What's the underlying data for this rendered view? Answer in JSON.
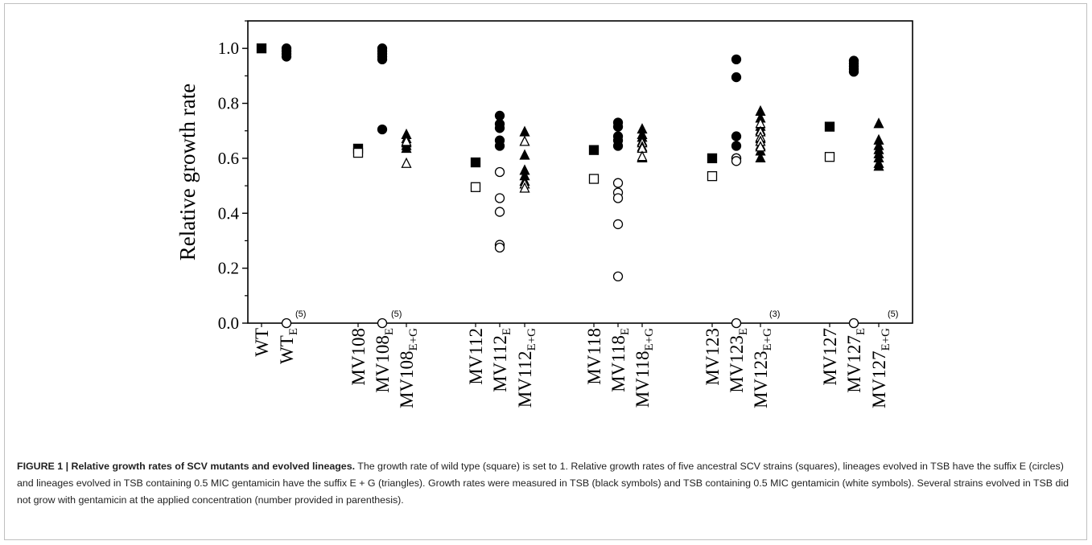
{
  "figure": {
    "caption_title": "FIGURE 1 | Relative growth rates of SCV mutants and evolved lineages.",
    "caption_text": "The growth rate of wild type (square) is set to 1. Relative growth rates of five ancestral SCV strains (squares), lineages evolved in TSB have the suffix E (circles) and lineages evolved in TSB containing 0.5 MIC gentamicin have the suffix E + G (triangles). Growth rates were measured in TSB (black symbols) and TSB containing 0.5 MIC gentamicin (white symbols). Several strains evolved in TSB did not grow with gentamicin at the applied concentration (number provided in parenthesis)."
  },
  "chart_data": {
    "type": "scatter",
    "ylabel": "Relative growth rate",
    "ylim": [
      0.0,
      1.1
    ],
    "yticks": [
      "0.0",
      "0.2",
      "0.4",
      "0.6",
      "0.8",
      "1.0"
    ],
    "categories": [
      {
        "base": "WT",
        "sub": ""
      },
      {
        "base": "WT",
        "sub": "E"
      },
      {
        "base": "MV108",
        "sub": ""
      },
      {
        "base": "MV108",
        "sub": "E"
      },
      {
        "base": "MV108",
        "sub": "E+G"
      },
      {
        "base": "MV112",
        "sub": ""
      },
      {
        "base": "MV112",
        "sub": "E"
      },
      {
        "base": "MV112",
        "sub": "E+G"
      },
      {
        "base": "MV118",
        "sub": ""
      },
      {
        "base": "MV118",
        "sub": "E"
      },
      {
        "base": "MV118",
        "sub": "E+G"
      },
      {
        "base": "MV123",
        "sub": ""
      },
      {
        "base": "MV123",
        "sub": "E"
      },
      {
        "base": "MV123",
        "sub": "E+G"
      },
      {
        "base": "MV127",
        "sub": ""
      },
      {
        "base": "MV127",
        "sub": "E"
      },
      {
        "base": "MV127",
        "sub": "E+G"
      }
    ],
    "points": [
      {
        "cat": 0,
        "shape": "square",
        "fill": "filled",
        "ys": [
          1.0
        ]
      },
      {
        "cat": 1,
        "shape": "circle",
        "fill": "filled",
        "ys": [
          1.0,
          0.99,
          0.98,
          0.97
        ]
      },
      {
        "cat": 1,
        "shape": "circle",
        "fill": "open",
        "ys": [
          0.0
        ]
      },
      {
        "cat": 2,
        "shape": "square",
        "fill": "filled",
        "ys": [
          0.635
        ]
      },
      {
        "cat": 2,
        "shape": "square",
        "fill": "open",
        "ys": [
          0.62
        ]
      },
      {
        "cat": 3,
        "shape": "circle",
        "fill": "filled",
        "ys": [
          1.0,
          0.99,
          0.98,
          0.97,
          0.96,
          0.705
        ]
      },
      {
        "cat": 3,
        "shape": "circle",
        "fill": "open",
        "ys": [
          0.0
        ]
      },
      {
        "cat": 4,
        "shape": "triangle",
        "fill": "filled",
        "ys": [
          0.685,
          0.67,
          0.655,
          0.645,
          0.635
        ]
      },
      {
        "cat": 4,
        "shape": "triangle",
        "fill": "open",
        "ys": [
          0.66,
          0.58
        ]
      },
      {
        "cat": 5,
        "shape": "square",
        "fill": "filled",
        "ys": [
          0.585
        ]
      },
      {
        "cat": 5,
        "shape": "square",
        "fill": "open",
        "ys": [
          0.495
        ]
      },
      {
        "cat": 6,
        "shape": "circle",
        "fill": "filled",
        "ys": [
          0.755,
          0.725,
          0.71,
          0.665,
          0.645
        ]
      },
      {
        "cat": 6,
        "shape": "circle",
        "fill": "open",
        "ys": [
          0.55,
          0.455,
          0.405,
          0.285,
          0.275
        ]
      },
      {
        "cat": 7,
        "shape": "triangle",
        "fill": "filled",
        "ys": [
          0.695,
          0.61,
          0.555,
          0.535,
          0.515
        ]
      },
      {
        "cat": 7,
        "shape": "triangle",
        "fill": "open",
        "ys": [
          0.66,
          0.505,
          0.49
        ]
      },
      {
        "cat": 8,
        "shape": "square",
        "fill": "filled",
        "ys": [
          0.63
        ]
      },
      {
        "cat": 8,
        "shape": "square",
        "fill": "open",
        "ys": [
          0.525
        ]
      },
      {
        "cat": 9,
        "shape": "circle",
        "fill": "filled",
        "ys": [
          0.73,
          0.715,
          0.68,
          0.665,
          0.645
        ]
      },
      {
        "cat": 9,
        "shape": "circle",
        "fill": "open",
        "ys": [
          0.51,
          0.475,
          0.455,
          0.36,
          0.17
        ]
      },
      {
        "cat": 10,
        "shape": "triangle",
        "fill": "filled",
        "ys": [
          0.705,
          0.685,
          0.675,
          0.66,
          0.6
        ]
      },
      {
        "cat": 10,
        "shape": "triangle",
        "fill": "open",
        "ys": [
          0.655,
          0.64,
          0.635,
          0.605
        ]
      },
      {
        "cat": 11,
        "shape": "square",
        "fill": "filled",
        "ys": [
          0.6
        ]
      },
      {
        "cat": 11,
        "shape": "square",
        "fill": "open",
        "ys": [
          0.535
        ]
      },
      {
        "cat": 12,
        "shape": "circle",
        "fill": "filled",
        "ys": [
          0.96,
          0.895,
          0.68,
          0.645,
          0.6
        ]
      },
      {
        "cat": 12,
        "shape": "circle",
        "fill": "open",
        "ys": [
          0.6,
          0.59,
          0.0
        ]
      },
      {
        "cat": 13,
        "shape": "triangle",
        "fill": "filled",
        "ys": [
          0.77,
          0.745,
          0.715,
          0.7,
          0.67,
          0.645,
          0.625,
          0.6
        ]
      },
      {
        "cat": 13,
        "shape": "triangle",
        "fill": "open",
        "ys": [
          0.725,
          0.695,
          0.675,
          0.66,
          0.64
        ]
      },
      {
        "cat": 14,
        "shape": "square",
        "fill": "filled",
        "ys": [
          0.715
        ]
      },
      {
        "cat": 14,
        "shape": "square",
        "fill": "open",
        "ys": [
          0.605
        ]
      },
      {
        "cat": 15,
        "shape": "circle",
        "fill": "filled",
        "ys": [
          0.955,
          0.945,
          0.935,
          0.925,
          0.915
        ]
      },
      {
        "cat": 15,
        "shape": "circle",
        "fill": "open",
        "ys": [
          0.0
        ]
      },
      {
        "cat": 16,
        "shape": "triangle",
        "fill": "filled",
        "ys": [
          0.725,
          0.665,
          0.645,
          0.63,
          0.615,
          0.6,
          0.58,
          0.57
        ]
      }
    ],
    "annotations": [
      {
        "cat": 1,
        "text": "(5)"
      },
      {
        "cat": 3,
        "text": "(5)"
      },
      {
        "cat": 13,
        "text": "(3)"
      },
      {
        "cat": 16,
        "text": "(5)"
      }
    ]
  }
}
